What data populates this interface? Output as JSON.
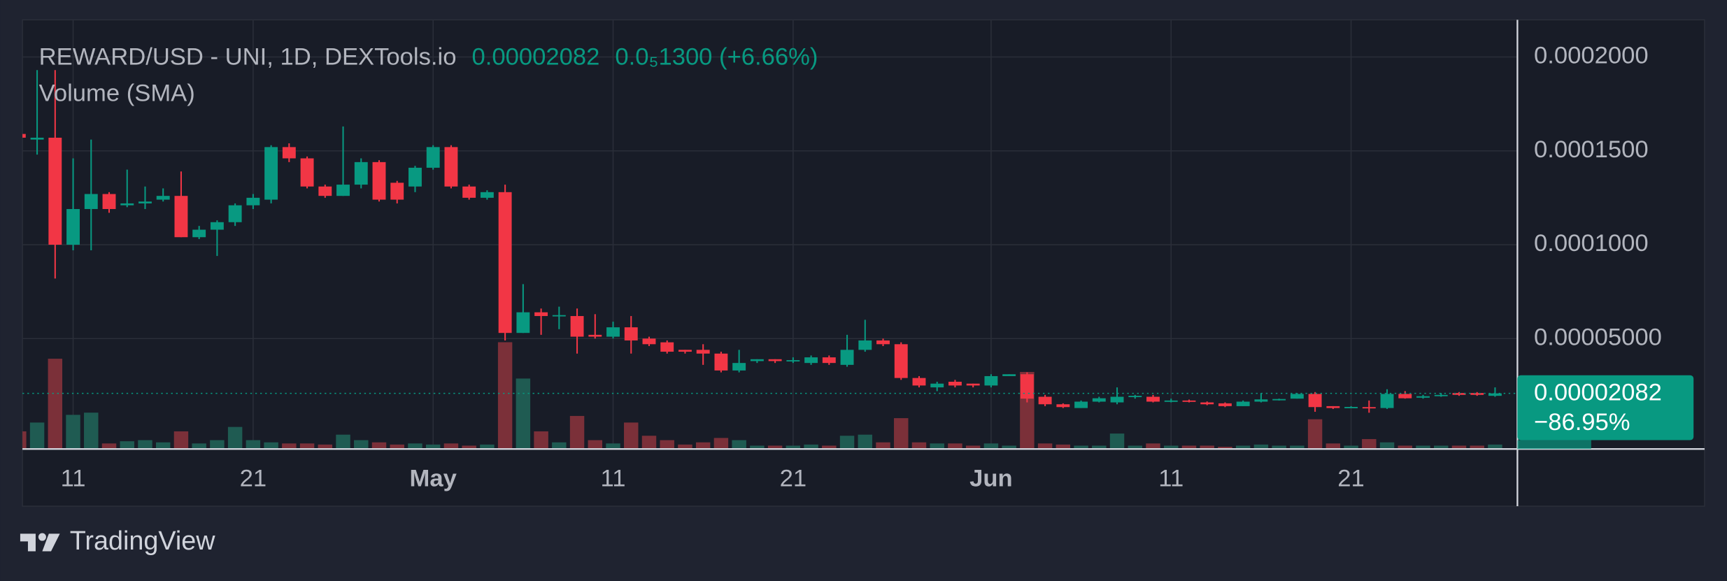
{
  "chart_data": {
    "type": "candlestick",
    "title": "REWARD/USD - UNI, 1D, DEXTools.io",
    "last_price": 2.082e-05,
    "change_text": "0.0₅1300 (+6.66%)",
    "change_percent_label": "−86.95%",
    "volume_label": "Volume (SMA)",
    "categories": [
      null,
      null,
      null,
      "11",
      null,
      null,
      null,
      null,
      null,
      null,
      null,
      null,
      null,
      "21",
      null,
      null,
      null,
      null,
      null,
      null,
      null,
      null,
      null,
      "May",
      null,
      null,
      null,
      null,
      null,
      null,
      null,
      null,
      null,
      "11",
      null,
      null,
      null,
      null,
      null,
      null,
      null,
      null,
      null,
      "21",
      null,
      null,
      null,
      null,
      null,
      null,
      null,
      null,
      null,
      null,
      "Jun",
      null,
      null,
      null,
      null,
      null,
      null,
      null,
      null,
      null,
      "11",
      null,
      null,
      null,
      null,
      null,
      null,
      null,
      null,
      null,
      "21",
      null,
      null,
      null,
      null,
      null,
      null,
      null,
      null
    ],
    "open": [
      0.000159,
      0.000156,
      0.000157,
      0.0001,
      0.000119,
      0.000127,
      0.000121,
      0.000122,
      0.000124,
      0.000126,
      0.000104,
      0.000108,
      0.000112,
      0.000121,
      0.000124,
      0.000152,
      0.000146,
      0.000131,
      0.000126,
      0.000132,
      0.000144,
      0.000133,
      0.000131,
      0.000141,
      0.000152,
      0.000131,
      0.000125,
      0.000128,
      5.3e-05,
      6.4e-05,
      6.2e-05,
      6.2e-05,
      5.2e-05,
      5.1e-05,
      5.6e-05,
      5e-05,
      4.8e-05,
      4.4e-05,
      4.4e-05,
      4.2e-05,
      3.3e-05,
      3.8e-05,
      3.9e-05,
      3.8e-05,
      3.7e-05,
      4e-05,
      3.6e-05,
      4.4e-05,
      4.9e-05,
      4.7e-05,
      2.9e-05,
      2.4e-05,
      2.7e-05,
      2.6e-05,
      2.5e-05,
      3e-05,
      3.1e-05,
      1.9e-05,
      1.5e-05,
      1.3e-05,
      1.64e-05,
      1.6e-05,
      1.9e-05,
      1.9e-05,
      1.7e-05,
      1.7e-05,
      1.6e-05,
      1.55e-05,
      1.4e-05,
      1.64e-05,
      1.76e-05,
      1.8e-05,
      2.05e-05,
      1.4e-05,
      1.33e-05,
      1.35e-05,
      1.3e-05,
      2.05e-05,
      1.85e-05,
      1.95e-05,
      2.1e-05,
      2.1e-05,
      1.95e-05
    ],
    "high": [
      0.000159,
      0.000193,
      0.000193,
      0.000146,
      0.000156,
      0.000128,
      0.00014,
      0.000131,
      0.00013,
      0.000139,
      0.00011,
      0.000113,
      0.000122,
      0.000127,
      0.000153,
      0.000154,
      0.000147,
      0.000132,
      0.000163,
      0.000146,
      0.000145,
      0.000134,
      0.000142,
      0.000153,
      0.000153,
      0.000132,
      0.000129,
      0.000132,
      7.9e-05,
      6.6e-05,
      6.7e-05,
      6.6e-05,
      6.3e-05,
      5.9e-05,
      6.2e-05,
      5.1e-05,
      4.9e-05,
      4.4e-05,
      4.7e-05,
      4.3e-05,
      4.4e-05,
      3.9e-05,
      3.9e-05,
      4e-05,
      4.1e-05,
      4.1e-05,
      5.2e-05,
      6e-05,
      5e-05,
      4.8e-05,
      3e-05,
      2.7e-05,
      2.8e-05,
      2.6e-05,
      3.1e-05,
      3.1e-05,
      3.2e-05,
      2e-05,
      1.55e-05,
      1.7e-05,
      1.9e-05,
      2.4e-05,
      2e-05,
      2e-05,
      1.8e-05,
      1.75e-05,
      1.65e-05,
      1.6e-05,
      1.7e-05,
      2.1e-05,
      1.8e-05,
      2.1e-05,
      2.15e-05,
      1.4e-05,
      1.4e-05,
      1.7e-05,
      2.3e-05,
      2.2e-05,
      2e-05,
      2.1e-05,
      2.15e-05,
      2.15e-05,
      2.4e-05
    ],
    "low": [
      0.000156,
      0.000148,
      8.2e-05,
      9.7e-05,
      9.7e-05,
      0.000117,
      0.00012,
      0.000119,
      0.000123,
      0.000104,
      0.000103,
      9.4e-05,
      0.00011,
      0.000119,
      0.000122,
      0.000144,
      0.00013,
      0.000125,
      0.000126,
      0.00013,
      0.000123,
      0.000122,
      0.000128,
      0.00014,
      0.00013,
      0.000124,
      0.000124,
      4.9e-05,
      5.3e-05,
      5.2e-05,
      5.5e-05,
      4.2e-05,
      5e-05,
      5e-05,
      4.2e-05,
      4.6e-05,
      4.2e-05,
      4.2e-05,
      3.6e-05,
      3.2e-05,
      3.2e-05,
      3.7e-05,
      3.7e-05,
      3.7e-05,
      3.6e-05,
      3.6e-05,
      3.5e-05,
      4.3e-05,
      4.6e-05,
      2.8e-05,
      2.4e-05,
      2.2e-05,
      2.4e-05,
      2.4e-05,
      2.4e-05,
      3e-05,
      1.6e-05,
      1.4e-05,
      1.3e-05,
      1.3e-05,
      1.6e-05,
      1.5e-05,
      1.8e-05,
      1.6e-05,
      1.6e-05,
      1.6e-05,
      1.45e-05,
      1.35e-05,
      1.4e-05,
      1.6e-05,
      1.7e-05,
      1.8e-05,
      1.1e-05,
      1.25e-05,
      1.3e-05,
      1.05e-05,
      1.25e-05,
      1.8e-05,
      1.8e-05,
      1.9e-05,
      1.95e-05,
      1.95e-05,
      1.9e-05
    ],
    "close": [
      0.000157,
      0.000157,
      0.0001,
      0.000119,
      0.000127,
      0.000119,
      0.000122,
      0.000123,
      0.000126,
      0.000104,
      0.000108,
      0.000112,
      0.000121,
      0.000125,
      0.000152,
      0.000146,
      0.000131,
      0.000126,
      0.000132,
      0.000144,
      0.000124,
      0.000124,
      0.000141,
      0.000152,
      0.000131,
      0.000125,
      0.000128,
      5.3e-05,
      6.4e-05,
      6.2e-05,
      6.25e-05,
      5.1e-05,
      5.1e-05,
      5.6e-05,
      4.9e-05,
      4.7e-05,
      4.3e-05,
      4.3e-05,
      4.2e-05,
      3.3e-05,
      3.7e-05,
      3.9e-05,
      3.8e-05,
      3.85e-05,
      4e-05,
      3.7e-05,
      4.4e-05,
      4.9e-05,
      4.7e-05,
      2.9e-05,
      2.5e-05,
      2.6e-05,
      2.5e-05,
      2.5e-05,
      3e-05,
      3.1e-05,
      1.8e-05,
      1.5e-05,
      1.35e-05,
      1.64e-05,
      1.82e-05,
      1.9e-05,
      1.95e-05,
      1.64e-05,
      1.7e-05,
      1.65e-05,
      1.5e-05,
      1.4e-05,
      1.64e-05,
      1.76e-05,
      1.78e-05,
      2.05e-05,
      1.35e-05,
      1.3e-05,
      1.36e-05,
      1.3e-05,
      2.05e-05,
      1.82e-05,
      1.93e-05,
      2e-05,
      2e-05,
      2e-05,
      2.082e-05
    ],
    "volume": [
      16,
      24,
      82,
      31,
      33,
      5,
      7,
      8,
      6,
      16,
      5,
      8,
      20,
      8,
      6,
      5,
      5,
      4,
      13,
      8,
      6,
      4,
      5,
      4,
      5,
      3,
      4,
      97,
      64,
      16,
      6,
      30,
      8,
      5,
      24,
      12,
      8,
      4,
      6,
      10,
      8,
      3,
      3,
      3,
      4,
      3,
      12,
      13,
      6,
      28,
      6,
      5,
      5,
      3,
      5,
      3,
      70,
      5,
      4,
      3,
      3,
      14,
      3,
      5,
      3,
      3,
      3,
      2,
      3,
      4,
      3,
      3,
      27,
      5,
      3,
      9,
      6,
      3,
      3,
      3,
      3,
      3,
      4
    ],
    "ylim": [
      -8.8e-06,
      0.0002198
    ],
    "yticks": [
      {
        "value": 5e-05,
        "label": "0.00005000"
      },
      {
        "value": 0.0001,
        "label": "0.0001000"
      },
      {
        "value": 0.00015,
        "label": "0.0001500"
      },
      {
        "value": 0.0002,
        "label": "0.0002000"
      }
    ],
    "grid": true,
    "up_color": "#089981",
    "down_color": "#f23645",
    "volume_up_color": "#1f5b52",
    "volume_down_color": "#7b3039"
  },
  "brand": "TradingView"
}
